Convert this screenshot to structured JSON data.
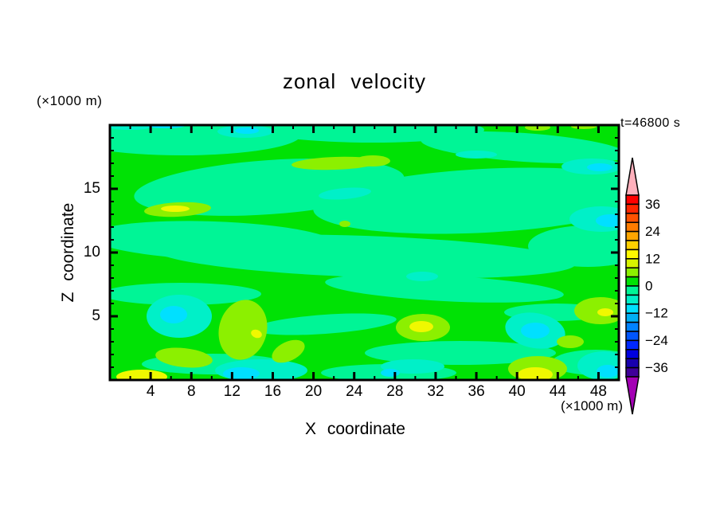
{
  "chart_data": {
    "type": "filled_contour",
    "title": "zonal velocity",
    "time_annotation": "t=46800 s",
    "x_axis": {
      "label": "X coordinate",
      "unit": "(×1000 m)",
      "range": [
        0,
        50
      ],
      "major_ticks": [
        4,
        8,
        12,
        16,
        20,
        24,
        28,
        32,
        36,
        40,
        44,
        48
      ],
      "minor_step": 2,
      "major_step": 4
    },
    "z_axis": {
      "label": "Z coordinate",
      "unit": "(×1000 m)",
      "range": [
        0,
        20
      ],
      "major_ticks": [
        5,
        10,
        15
      ],
      "minor_step": 1,
      "major_step": 5
    },
    "colorbar": {
      "label_values": [
        36,
        24,
        12,
        0,
        -12,
        -24,
        -36
      ],
      "level_min": -40,
      "level_max": 40,
      "level_step": 4,
      "segment_colors_top_to_bottom": [
        "#FF0000",
        "#FF2600",
        "#FF5200",
        "#FF7C00",
        "#FFA600",
        "#FFD000",
        "#FFFA00",
        "#D8F400",
        "#8CF000",
        "#00E205",
        "#00F596",
        "#00F0C8",
        "#00E0FF",
        "#00AFF5",
        "#0082FF",
        "#0055FF",
        "#0028FF",
        "#0000E0",
        "#1800AE",
        "#3F0099"
      ],
      "over_arrow_color": "#FFB0BC",
      "under_arrow_color": "#A300B4"
    },
    "field": {
      "background_color": "#00E205",
      "background_band": "0 to 4",
      "band_colors": {
        "s": "#00F596",
        "t": "#00F0C8",
        "c": "#00E0FF",
        "h": "#8CF000",
        "y": "#F0F800"
      },
      "band_levels": {
        "s": "-4 to 0",
        "t": "-8 to -4",
        "c": "-12 to -8",
        "h": "4 to 8",
        "y": "8 to 16"
      },
      "patches": [
        [
          "s",
          90,
          12,
          150,
          26,
          0
        ],
        [
          "s",
          330,
          6,
          140,
          16,
          0
        ],
        [
          "s",
          520,
          28,
          130,
          18,
          4
        ],
        [
          "s",
          200,
          78,
          170,
          34,
          -4
        ],
        [
          "s",
          470,
          95,
          215,
          40,
          -3
        ],
        [
          "s",
          615,
          70,
          60,
          22,
          0
        ],
        [
          "s",
          130,
          145,
          155,
          24,
          2
        ],
        [
          "s",
          320,
          165,
          265,
          26,
          2
        ],
        [
          "s",
          600,
          152,
          75,
          26,
          0
        ],
        [
          "s",
          90,
          212,
          100,
          14,
          0
        ],
        [
          "s",
          420,
          205,
          150,
          16,
          3
        ],
        [
          "s",
          270,
          250,
          90,
          12,
          -4
        ],
        [
          "s",
          560,
          235,
          65,
          11,
          0
        ],
        [
          "s",
          440,
          286,
          120,
          15,
          0
        ],
        [
          "s",
          130,
          300,
          90,
          13,
          0
        ],
        [
          "s",
          610,
          298,
          55,
          16,
          0
        ],
        [
          "s",
          350,
          311,
          85,
          11,
          0
        ],
        [
          "t",
          25,
          2,
          28,
          4,
          0
        ],
        [
          "c",
          70,
          1,
          24,
          3,
          0
        ],
        [
          "t",
          170,
          8,
          35,
          8,
          0
        ],
        [
          "t",
          295,
          86,
          33,
          7,
          -5
        ],
        [
          "t",
          460,
          37,
          26,
          5,
          0
        ],
        [
          "t",
          605,
          52,
          38,
          10,
          0
        ],
        [
          "t",
          617,
          118,
          40,
          16,
          0
        ],
        [
          "t",
          87,
          240,
          41,
          27,
          0
        ],
        [
          "t",
          190,
          308,
          58,
          14,
          0
        ],
        [
          "t",
          534,
          258,
          38,
          22,
          10
        ],
        [
          "t",
          620,
          302,
          33,
          18,
          0
        ],
        [
          "t",
          380,
          303,
          40,
          9,
          0
        ],
        [
          "t",
          392,
          190,
          20,
          6,
          0
        ],
        [
          "c",
          172,
          7,
          15,
          4,
          0
        ],
        [
          "c",
          615,
          53,
          16,
          5,
          0
        ],
        [
          "c",
          628,
          120,
          18,
          8,
          0
        ],
        [
          "c",
          80,
          238,
          17,
          11,
          0
        ],
        [
          "c",
          165,
          312,
          23,
          8,
          0
        ],
        [
          "c",
          534,
          258,
          18,
          10,
          0
        ],
        [
          "c",
          625,
          309,
          14,
          8,
          0
        ],
        [
          "c",
          352,
          311,
          12,
          5,
          0
        ],
        [
          "h",
          85,
          106,
          42,
          9,
          -3
        ],
        [
          "h",
          283,
          48,
          55,
          8,
          -2
        ],
        [
          "h",
          330,
          45,
          22,
          7,
          0
        ],
        [
          "h",
          167,
          257,
          30,
          38,
          14
        ],
        [
          "h",
          93,
          292,
          36,
          12,
          6
        ],
        [
          "h",
          224,
          284,
          22,
          12,
          -25
        ],
        [
          "h",
          393,
          254,
          34,
          17,
          0
        ],
        [
          "h",
          616,
          233,
          33,
          17,
          0
        ],
        [
          "h",
          578,
          272,
          17,
          8,
          0
        ],
        [
          "h",
          537,
          306,
          37,
          16,
          0
        ],
        [
          "h",
          537,
          3,
          16,
          4,
          0
        ],
        [
          "h",
          595,
          2,
          16,
          3,
          0
        ],
        [
          "h",
          295,
          124,
          7,
          4,
          0
        ],
        [
          "y",
          82,
          105,
          18,
          4,
          0
        ],
        [
          "y",
          184,
          262,
          7,
          5,
          20
        ],
        [
          "y",
          40,
          316,
          32,
          9,
          0
        ],
        [
          "y",
          391,
          253,
          15,
          7,
          0
        ],
        [
          "y",
          534,
          313,
          22,
          9,
          0
        ],
        [
          "y",
          622,
          235,
          10,
          5,
          0
        ]
      ]
    }
  }
}
